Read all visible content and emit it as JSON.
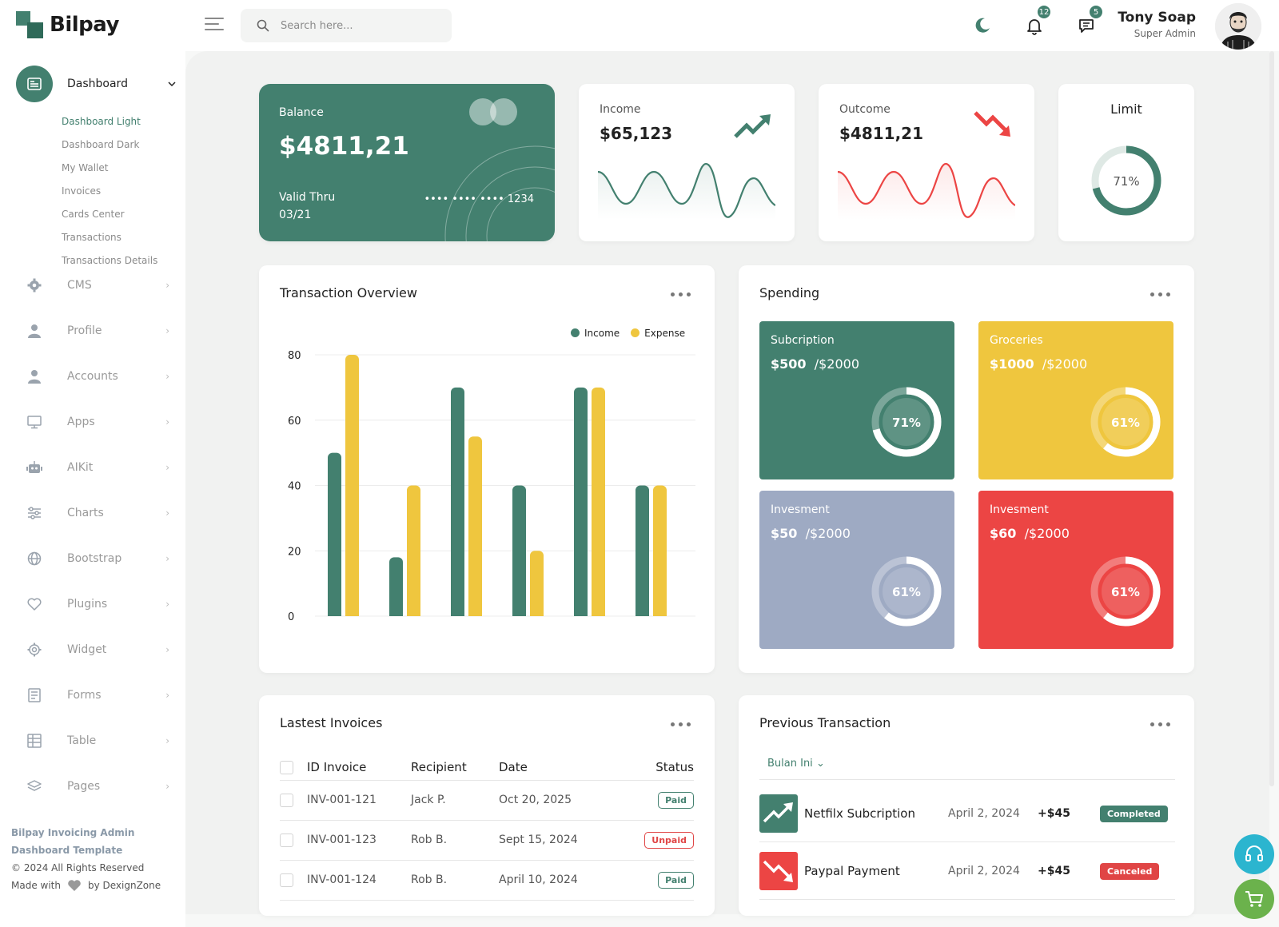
{
  "app": {
    "name": "Bilpay"
  },
  "search": {
    "placeholder": "Search here..."
  },
  "notifications": {
    "bell_count": "12",
    "message_count": "5"
  },
  "user": {
    "name": "Tony Soap",
    "role": "Super Admin"
  },
  "sidebar": {
    "dashboard_label": "Dashboard",
    "submenu": [
      "Dashboard Light",
      "Dashboard Dark",
      "My Wallet",
      "Invoices",
      "Cards Center",
      "Transactions",
      "Transactions Details"
    ],
    "items": [
      {
        "label": "CMS",
        "icon": "gear-icon"
      },
      {
        "label": "Profile",
        "icon": "user-icon"
      },
      {
        "label": "Accounts",
        "icon": "user-icon"
      },
      {
        "label": "Apps",
        "icon": "monitor-icon"
      },
      {
        "label": "AIKit",
        "icon": "robot-icon"
      },
      {
        "label": "Charts",
        "icon": "sliders-icon"
      },
      {
        "label": "Bootstrap",
        "icon": "globe-icon"
      },
      {
        "label": "Plugins",
        "icon": "heart-icon"
      },
      {
        "label": "Widget",
        "icon": "settings-icon"
      },
      {
        "label": "Forms",
        "icon": "form-icon"
      },
      {
        "label": "Table",
        "icon": "table-icon"
      },
      {
        "label": "Pages",
        "icon": "layers-icon"
      }
    ],
    "footer": {
      "title": "Bilpay Invoicing Admin Dashboard Template",
      "copyright": "© 2024 All Rights Reserved",
      "made_with": "Made with",
      "by": "by DexignZone"
    }
  },
  "balance": {
    "label": "Balance",
    "amount": "$4811,21",
    "valid_label": "Valid Thru",
    "valid_date": "03/21",
    "card_number": "•••• •••• •••• 1234"
  },
  "income": {
    "label": "Income",
    "amount": "$65,123"
  },
  "outcome": {
    "label": "Outcome",
    "amount": "$4811,21"
  },
  "limit": {
    "label": "Limit",
    "percent": "71%",
    "value": 0.71
  },
  "overview": {
    "title": "Transaction Overview",
    "legend_income": "Income",
    "legend_expense": "Expense"
  },
  "chart_data": {
    "type": "bar",
    "title": "Transaction Overview",
    "categories": [
      "",
      "",
      "",
      "",
      "",
      ""
    ],
    "series": [
      {
        "name": "Income",
        "values": [
          50,
          18,
          70,
          40,
          70,
          40
        ]
      },
      {
        "name": "Expense",
        "values": [
          80,
          40,
          55,
          20,
          70,
          40
        ]
      }
    ],
    "ylim": [
      0,
      80
    ],
    "yticks": [
      "0",
      "20",
      "40",
      "60",
      "80"
    ],
    "colors": {
      "Income": "#43806f",
      "Expense": "#efc63e"
    },
    "legend": "top-right",
    "grid": true
  },
  "spending": {
    "title": "Spending",
    "tiles": [
      {
        "title": "Subcription",
        "spent": "$500",
        "total": "/$2000",
        "percent": "71%",
        "value": 0.71,
        "color": "#43806f"
      },
      {
        "title": "Groceries",
        "spent": "$1000",
        "total": "/$2000",
        "percent": "61%",
        "value": 0.61,
        "color": "#efc63e"
      },
      {
        "title": "Invesment",
        "spent": "$50",
        "total": "/$2000",
        "percent": "61%",
        "value": 0.61,
        "color": "#9eaac3"
      },
      {
        "title": "Invesment",
        "spent": "$60",
        "total": "/$2000",
        "percent": "61%",
        "value": 0.61,
        "color": "#ec4544"
      }
    ]
  },
  "invoices": {
    "title": "Lastest Invoices",
    "headers": [
      "ID Invoice",
      "Recipient",
      "Date",
      "Status"
    ],
    "rows": [
      {
        "id": "INV-001-121",
        "recipient": "Jack P.",
        "date": "Oct 20, 2025",
        "status": "Paid"
      },
      {
        "id": "INV-001-123",
        "recipient": "Rob B.",
        "date": "Sept 15, 2024",
        "status": "Unpaid"
      },
      {
        "id": "INV-001-124",
        "recipient": "Rob B.",
        "date": "April 10, 2024",
        "status": "Paid"
      }
    ]
  },
  "transactions": {
    "title": "Previous Transaction",
    "filter": "Bulan Ini",
    "rows": [
      {
        "name": "Netfilx Subcription",
        "date": "April 2, 2024",
        "amount": "+$45",
        "status": "Completed",
        "status_color": "#43806f",
        "icon_color": "#43806f",
        "icon": "trend-up-icon"
      },
      {
        "name": "Paypal Payment",
        "date": "April 2, 2024",
        "amount": "+$45",
        "status": "Canceled",
        "status_color": "#e04545",
        "icon_color": "#ec4544",
        "icon": "trend-down-icon"
      }
    ]
  },
  "colors": {
    "primary": "#43806f",
    "yellow": "#efc63e",
    "red": "#ec4544",
    "slate": "#9eaac3"
  }
}
